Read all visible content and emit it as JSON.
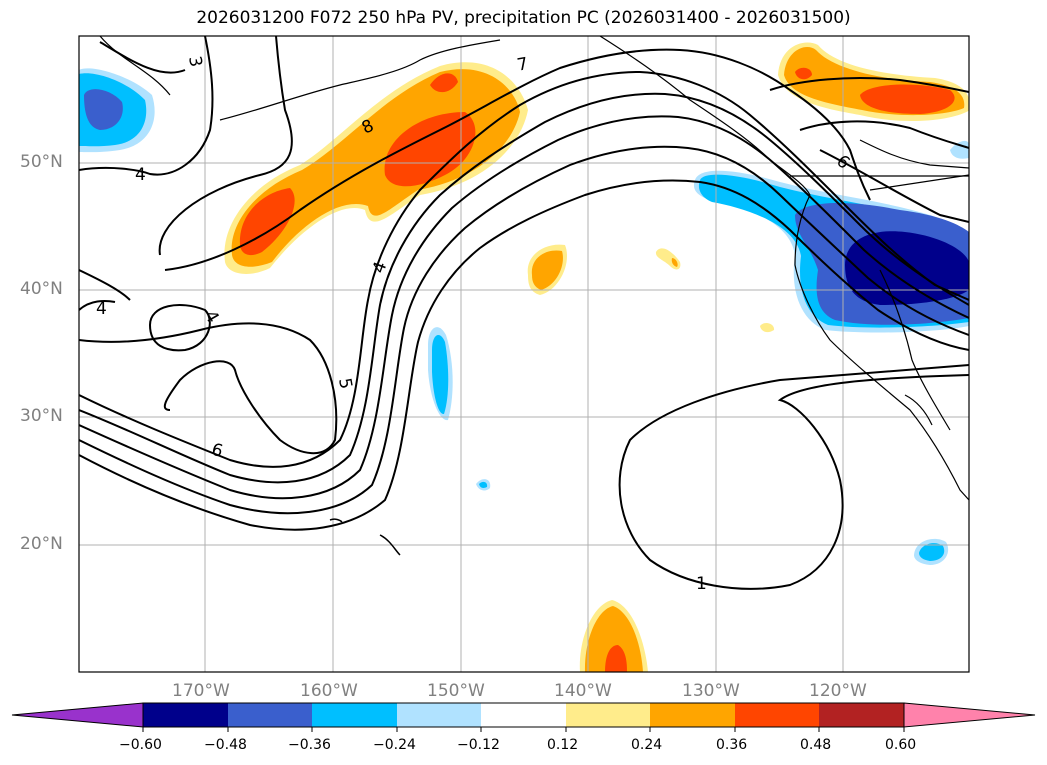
{
  "title": "2026031200 F072 250 hPa PV, precipitation PC (2026031400 - 2026031500)",
  "lat_labels": [
    "50°N",
    "40°N",
    "30°N",
    "20°N"
  ],
  "lon_labels": [
    "170°W",
    "160°W",
    "150°W",
    "140°W",
    "130°W",
    "120°W"
  ],
  "contour_labels": [
    "3",
    "4",
    "4",
    "4",
    "8",
    "7",
    "6",
    "4",
    "5",
    "6",
    "1"
  ],
  "colorbar": {
    "ticks": [
      "−0.60",
      "−0.48",
      "−0.36",
      "−0.24",
      "−0.12",
      "0.12",
      "0.24",
      "0.36",
      "0.48",
      "0.60"
    ],
    "colors": [
      "#9932cc",
      "#00008b",
      "#3a5fcd",
      "#00bfff",
      "#b0e2ff",
      "#ffffff",
      "#ffec8b",
      "#ffa500",
      "#ff4500",
      "#b22222",
      "#ff82ab"
    ]
  },
  "colors": {
    "neg_strong": "#00008b",
    "neg_med": "#3a5fcd",
    "neg_mid": "#00bfff",
    "neg_light": "#b0e2ff",
    "pos_light": "#ffec8b",
    "pos_mid": "#ffa500",
    "pos_strong": "#ff4500",
    "grid": "#b0b0b0"
  }
}
